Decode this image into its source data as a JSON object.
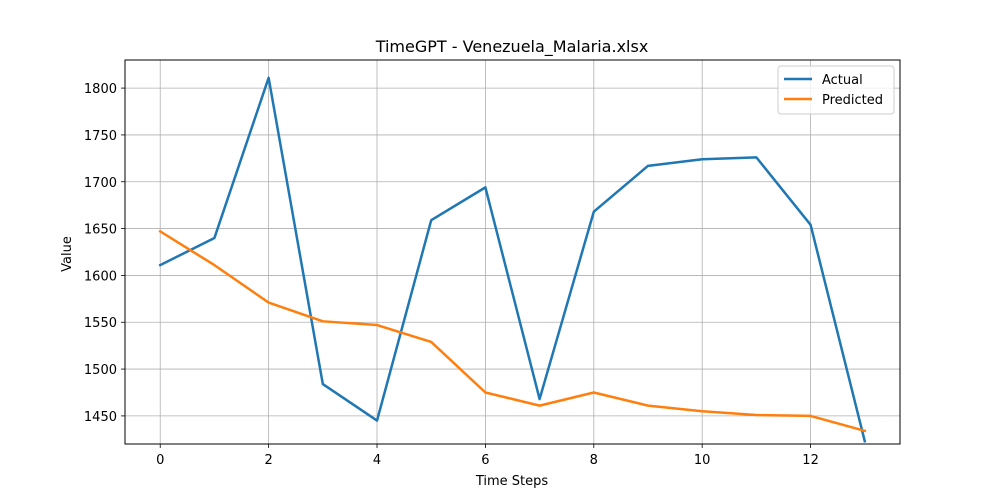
{
  "chart_data": {
    "type": "line",
    "title": "TimeGPT - Venezuela_Malaria.xlsx",
    "xlabel": "Time Steps",
    "ylabel": "Value",
    "x": [
      0,
      1,
      2,
      3,
      4,
      5,
      6,
      7,
      8,
      9,
      10,
      11,
      12,
      13
    ],
    "xlim": [
      -0.65,
      13.65
    ],
    "ylim": [
      1420,
      1830
    ],
    "xticks": [
      0,
      2,
      4,
      6,
      8,
      10,
      12
    ],
    "yticks": [
      1450,
      1500,
      1550,
      1600,
      1650,
      1700,
      1750,
      1800
    ],
    "grid": true,
    "legend_position": "top-right",
    "series": [
      {
        "name": "Actual",
        "color": "#1f77b4",
        "values": [
          1611,
          1640,
          1811,
          1484,
          1445,
          1659,
          1694,
          1468,
          1668,
          1717,
          1724,
          1726,
          1654,
          1423
        ]
      },
      {
        "name": "Predicted",
        "color": "#ff7f0e",
        "values": [
          1647,
          1611,
          1571,
          1551,
          1547,
          1529,
          1475,
          1461,
          1475,
          1461,
          1455,
          1451,
          1450,
          1434
        ]
      }
    ]
  }
}
